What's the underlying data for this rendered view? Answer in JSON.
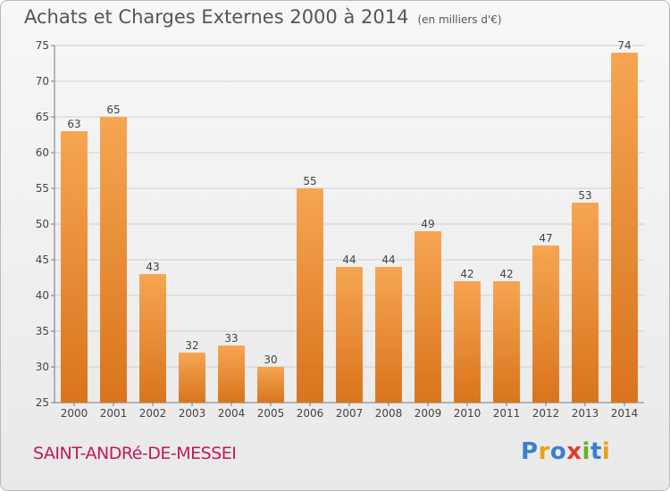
{
  "header": {
    "title": "Achats et Charges Externes 2000 à 2014",
    "subtitle": "(en milliers d'€)"
  },
  "footer": {
    "place": "SAINT-ANDRé-DE-MESSEI",
    "logo": "Proxiti"
  },
  "colors": {
    "bar_top": "#f6a552",
    "bar_bottom": "#d9741c",
    "grid": "#cfcfcf",
    "place": "#c2185b",
    "logo_letters": [
      "#3a7fd0",
      "#e6a21a",
      "#3a7fd0",
      "#e03a2c",
      "#6bb02a",
      "#3a7fd0",
      "#e6a21a"
    ]
  },
  "chart_data": {
    "type": "bar",
    "categories": [
      "2000",
      "2001",
      "2002",
      "2003",
      "2004",
      "2005",
      "2006",
      "2007",
      "2008",
      "2009",
      "2010",
      "2011",
      "2012",
      "2013",
      "2014"
    ],
    "values": [
      63,
      65,
      43,
      32,
      33,
      30,
      55,
      44,
      44,
      49,
      42,
      42,
      47,
      53,
      74
    ],
    "title": "Achats et Charges Externes 2000 à 2014",
    "ylim": [
      25,
      75
    ],
    "yticks": [
      25,
      30,
      35,
      40,
      45,
      50,
      55,
      60,
      65,
      70,
      75
    ],
    "grid": true
  }
}
